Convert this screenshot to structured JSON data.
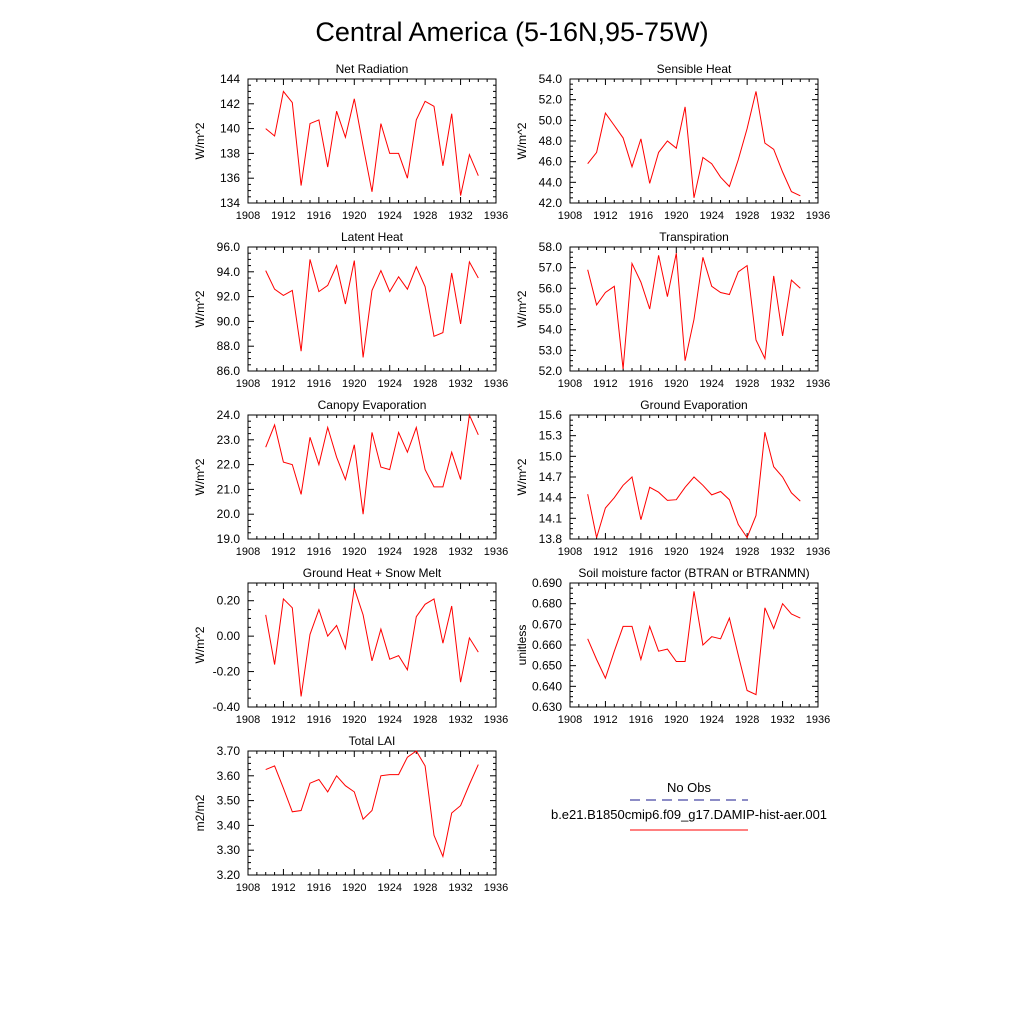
{
  "figure": {
    "title": "Central America (5-16N,95-75W)",
    "line_color": "#ff0000",
    "legend": {
      "obs_label": "No Obs",
      "obs_color": "#1a1a8c",
      "model_label": "b.e21.B1850cmip6.f09_g17.DAMIP-hist-aer.001",
      "model_color": "#ff0000"
    }
  },
  "chart_data": [
    {
      "type": "line",
      "title": "Net Radiation",
      "ylabel": "W/m^2",
      "xlim": [
        1908,
        1936
      ],
      "ylim": [
        134,
        144
      ],
      "xticks": [
        "1908",
        "1912",
        "1916",
        "1920",
        "1924",
        "1928",
        "1932",
        "1936"
      ],
      "yticks": [
        "134",
        "136",
        "138",
        "140",
        "142",
        "144"
      ],
      "x": [
        1910,
        1911,
        1912,
        1913,
        1914,
        1915,
        1916,
        1917,
        1918,
        1919,
        1920,
        1921,
        1922,
        1923,
        1924,
        1925,
        1926,
        1927,
        1928,
        1929,
        1930,
        1931,
        1932,
        1933,
        1934
      ],
      "values": [
        140.0,
        139.4,
        143.0,
        142.1,
        135.4,
        140.4,
        140.7,
        136.9,
        141.4,
        139.3,
        142.4,
        138.6,
        134.9,
        140.4,
        138.0,
        138.0,
        136.0,
        140.7,
        142.2,
        141.8,
        137.0,
        141.2,
        134.6,
        137.9,
        136.2
      ]
    },
    {
      "type": "line",
      "title": "Sensible Heat",
      "ylabel": "W/m^2",
      "xlim": [
        1908,
        1936
      ],
      "ylim": [
        42.0,
        54.0
      ],
      "xticks": [
        "1908",
        "1912",
        "1916",
        "1920",
        "1924",
        "1928",
        "1932",
        "1936"
      ],
      "yticks": [
        "42.0",
        "44.0",
        "46.0",
        "48.0",
        "50.0",
        "52.0",
        "54.0"
      ],
      "x": [
        1910,
        1911,
        1912,
        1913,
        1914,
        1915,
        1916,
        1917,
        1918,
        1919,
        1920,
        1921,
        1922,
        1923,
        1924,
        1925,
        1926,
        1927,
        1928,
        1929,
        1930,
        1931,
        1932,
        1933,
        1934
      ],
      "values": [
        45.8,
        46.9,
        50.7,
        49.5,
        48.3,
        45.5,
        48.2,
        43.9,
        46.9,
        48.0,
        47.3,
        51.3,
        42.5,
        46.4,
        45.8,
        44.5,
        43.6,
        46.2,
        49.2,
        52.8,
        47.8,
        47.2,
        45.0,
        43.1,
        42.7
      ]
    },
    {
      "type": "line",
      "title": "Latent Heat",
      "ylabel": "W/m^2",
      "xlim": [
        1908,
        1936
      ],
      "ylim": [
        86.0,
        96.0
      ],
      "xticks": [
        "1908",
        "1912",
        "1916",
        "1920",
        "1924",
        "1928",
        "1932",
        "1936"
      ],
      "yticks": [
        "86.0",
        "88.0",
        "90.0",
        "92.0",
        "94.0",
        "96.0"
      ],
      "x": [
        1910,
        1911,
        1912,
        1913,
        1914,
        1915,
        1916,
        1917,
        1918,
        1919,
        1920,
        1921,
        1922,
        1923,
        1924,
        1925,
        1926,
        1927,
        1928,
        1929,
        1930,
        1931,
        1932,
        1933,
        1934
      ],
      "values": [
        94.1,
        92.6,
        92.1,
        92.5,
        87.6,
        95.0,
        92.4,
        92.9,
        94.5,
        91.4,
        94.9,
        87.1,
        92.5,
        94.1,
        92.4,
        93.6,
        92.6,
        94.4,
        92.8,
        88.8,
        89.1,
        93.9,
        89.8,
        94.8,
        93.5
      ]
    },
    {
      "type": "line",
      "title": "Transpiration",
      "ylabel": "W/m^2",
      "xlim": [
        1908,
        1936
      ],
      "ylim": [
        52.0,
        58.0
      ],
      "xticks": [
        "1908",
        "1912",
        "1916",
        "1920",
        "1924",
        "1928",
        "1932",
        "1936"
      ],
      "yticks": [
        "52.0",
        "53.0",
        "54.0",
        "55.0",
        "56.0",
        "57.0",
        "58.0"
      ],
      "x": [
        1910,
        1911,
        1912,
        1913,
        1914,
        1915,
        1916,
        1917,
        1918,
        1919,
        1920,
        1921,
        1922,
        1923,
        1924,
        1925,
        1926,
        1927,
        1928,
        1929,
        1930,
        1931,
        1932,
        1933,
        1934
      ],
      "values": [
        56.9,
        55.2,
        55.8,
        56.1,
        52.1,
        57.2,
        56.3,
        55.0,
        57.6,
        55.6,
        57.7,
        52.5,
        54.5,
        57.5,
        56.1,
        55.8,
        55.7,
        56.8,
        57.1,
        53.5,
        52.6,
        56.6,
        53.7,
        56.4,
        56.0
      ]
    },
    {
      "type": "line",
      "title": "Canopy Evaporation",
      "ylabel": "W/m^2",
      "xlim": [
        1908,
        1936
      ],
      "ylim": [
        19.0,
        24.0
      ],
      "xticks": [
        "1908",
        "1912",
        "1916",
        "1920",
        "1924",
        "1928",
        "1932",
        "1936"
      ],
      "yticks": [
        "19.0",
        "20.0",
        "21.0",
        "22.0",
        "23.0",
        "24.0"
      ],
      "x": [
        1910,
        1911,
        1912,
        1913,
        1914,
        1915,
        1916,
        1917,
        1918,
        1919,
        1920,
        1921,
        1922,
        1923,
        1924,
        1925,
        1926,
        1927,
        1928,
        1929,
        1930,
        1931,
        1932,
        1933,
        1934
      ],
      "values": [
        22.7,
        23.6,
        22.1,
        22.0,
        20.8,
        23.1,
        22.0,
        23.5,
        22.3,
        21.4,
        22.8,
        20.0,
        23.3,
        21.9,
        21.8,
        23.3,
        22.5,
        23.5,
        21.8,
        21.1,
        21.1,
        22.5,
        21.4,
        24.0,
        23.2
      ]
    },
    {
      "type": "line",
      "title": "Ground Evaporation",
      "ylabel": "W/m^2",
      "xlim": [
        1908,
        1936
      ],
      "ylim": [
        13.8,
        15.6
      ],
      "xticks": [
        "1908",
        "1912",
        "1916",
        "1920",
        "1924",
        "1928",
        "1932",
        "1936"
      ],
      "yticks": [
        "13.8",
        "14.1",
        "14.4",
        "14.7",
        "15.0",
        "15.3",
        "15.6"
      ],
      "x": [
        1910,
        1911,
        1912,
        1913,
        1914,
        1915,
        1916,
        1917,
        1918,
        1919,
        1920,
        1921,
        1922,
        1923,
        1924,
        1925,
        1926,
        1927,
        1928,
        1929,
        1930,
        1931,
        1932,
        1933,
        1934
      ],
      "values": [
        14.45,
        13.82,
        14.25,
        14.4,
        14.58,
        14.7,
        14.08,
        14.55,
        14.48,
        14.36,
        14.37,
        14.55,
        14.7,
        14.58,
        14.44,
        14.49,
        14.37,
        14.01,
        13.82,
        14.14,
        15.35,
        14.85,
        14.7,
        14.47,
        14.35
      ]
    },
    {
      "type": "line",
      "title": "Ground Heat + Snow Melt",
      "ylabel": "W/m^2",
      "xlim": [
        1908,
        1936
      ],
      "ylim": [
        -0.4,
        0.3
      ],
      "xticks": [
        "1908",
        "1912",
        "1916",
        "1920",
        "1924",
        "1928",
        "1932",
        "1936"
      ],
      "yticks": [
        "-0.40",
        "-0.20",
        "0.00",
        "0.20"
      ],
      "ytick_values": [
        -0.4,
        -0.2,
        0.0,
        0.2
      ],
      "x": [
        1910,
        1911,
        1912,
        1913,
        1914,
        1915,
        1916,
        1917,
        1918,
        1919,
        1920,
        1921,
        1922,
        1923,
        1924,
        1925,
        1926,
        1927,
        1928,
        1929,
        1930,
        1931,
        1932,
        1933,
        1934
      ],
      "values": [
        0.12,
        -0.16,
        0.21,
        0.16,
        -0.34,
        0.01,
        0.15,
        0.0,
        0.06,
        -0.07,
        0.27,
        0.12,
        -0.14,
        0.04,
        -0.13,
        -0.11,
        -0.19,
        0.11,
        0.18,
        0.21,
        -0.04,
        0.17,
        -0.26,
        -0.01,
        -0.09
      ]
    },
    {
      "type": "line",
      "title": "Soil moisture factor (BTRAN or BTRANMN)",
      "ylabel": "unitless",
      "xlim": [
        1908,
        1936
      ],
      "ylim": [
        0.63,
        0.69
      ],
      "xticks": [
        "1908",
        "1912",
        "1916",
        "1920",
        "1924",
        "1928",
        "1932",
        "1936"
      ],
      "yticks": [
        "0.630",
        "0.640",
        "0.650",
        "0.660",
        "0.670",
        "0.680",
        "0.690"
      ],
      "x": [
        1910,
        1911,
        1912,
        1913,
        1914,
        1915,
        1916,
        1917,
        1918,
        1919,
        1920,
        1921,
        1922,
        1923,
        1924,
        1925,
        1926,
        1927,
        1928,
        1929,
        1930,
        1931,
        1932,
        1933,
        1934
      ],
      "values": [
        0.663,
        0.653,
        0.644,
        0.657,
        0.669,
        0.669,
        0.653,
        0.669,
        0.657,
        0.658,
        0.652,
        0.652,
        0.686,
        0.66,
        0.664,
        0.663,
        0.673,
        0.655,
        0.638,
        0.636,
        0.678,
        0.668,
        0.68,
        0.675,
        0.673
      ]
    },
    {
      "type": "line",
      "title": "Total LAI",
      "ylabel": "m2/m2",
      "xlim": [
        1908,
        1936
      ],
      "ylim": [
        3.2,
        3.7
      ],
      "xticks": [
        "1908",
        "1912",
        "1916",
        "1920",
        "1924",
        "1928",
        "1932",
        "1936"
      ],
      "yticks": [
        "3.20",
        "3.30",
        "3.40",
        "3.50",
        "3.60",
        "3.70"
      ],
      "x": [
        1910,
        1911,
        1912,
        1913,
        1914,
        1915,
        1916,
        1917,
        1918,
        1919,
        1920,
        1921,
        1922,
        1923,
        1924,
        1925,
        1926,
        1927,
        1928,
        1929,
        1930,
        1931,
        1932,
        1933,
        1934
      ],
      "values": [
        3.625,
        3.64,
        3.55,
        3.455,
        3.46,
        3.57,
        3.585,
        3.535,
        3.6,
        3.56,
        3.535,
        3.425,
        3.46,
        3.6,
        3.605,
        3.605,
        3.675,
        3.7,
        3.64,
        3.36,
        3.275,
        3.45,
        3.48,
        3.565,
        3.645
      ]
    }
  ]
}
